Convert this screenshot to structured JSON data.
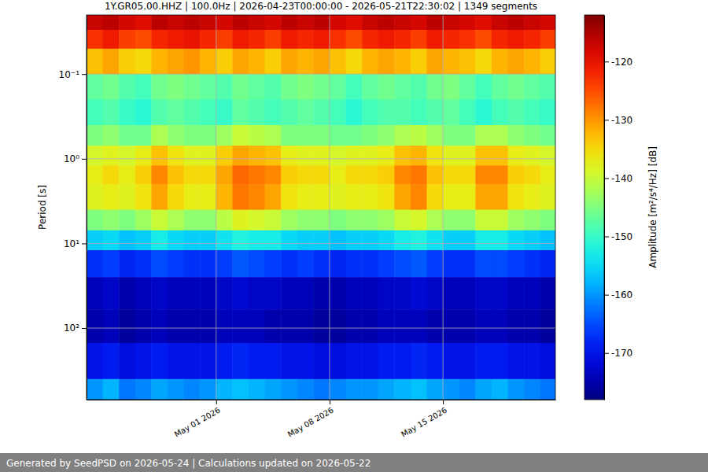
{
  "chart_data": {
    "type": "heatmap",
    "title": "1Y.GR05.00.HHZ | 100.0Hz | 2026-04-23T00:00:00 - 2026-05-21T22:30:02 | 1349 segments",
    "y_label": "Period [s]",
    "footer": "Generated by SeedPSD on 2026-05-24 | Calculations updated on 2026-05-22",
    "log": "y",
    "grid": true,
    "color": "jet",
    "x": [
      "2026-04-23T00:00",
      "2026-04-24T00:00",
      "2026-04-25T00:00",
      "2026-04-26T00:00",
      "2026-04-27T00:00",
      "2026-04-28T00:00",
      "2026-04-29T00:00",
      "2026-04-30T00:00",
      "2026-05-01T00:00",
      "2026-05-02T00:00",
      "2026-05-03T00:00",
      "2026-05-04T00:00",
      "2026-05-05T00:00",
      "2026-05-06T00:00",
      "2026-05-07T00:00",
      "2026-05-08T00:00",
      "2026-05-09T00:00",
      "2026-05-10T00:00",
      "2026-05-11T00:00",
      "2026-05-12T00:00",
      "2026-05-13T00:00",
      "2026-05-14T00:00",
      "2026-05-15T00:00",
      "2026-05-16T00:00",
      "2026-05-17T00:00",
      "2026-05-18T00:00",
      "2026-05-19T00:00",
      "2026-05-20T00:00",
      "2026-05-21T00:00"
    ],
    "xlim": [
      "2026-04-23T00:00",
      "2026-05-21T22:30"
    ],
    "xticks": [
      {
        "value": "2026-05-01T00:00",
        "label": "May 01 2026"
      },
      {
        "value": "2026-05-08T00:00",
        "label": "May 08 2026"
      },
      {
        "value": "2026-05-15T00:00",
        "label": "May 15 2026"
      }
    ],
    "y_bins": [
      0.02,
      0.03,
      0.05,
      0.1,
      0.2,
      0.4,
      0.7,
      1.2,
      2,
      4,
      7,
      12,
      25,
      60,
      150,
      400,
      700
    ],
    "ylim": [
      0.02,
      700
    ],
    "yticks": [
      {
        "value": 0.1,
        "label": "10⁻¹"
      },
      {
        "value": 1,
        "label": "10⁰"
      },
      {
        "value": 10,
        "label": "10¹"
      },
      {
        "value": 100,
        "label": "10²"
      }
    ],
    "z": [
      [
        -117,
        -116,
        -118,
        -119,
        -116,
        -117,
        -116,
        -117,
        -118,
        -116,
        -117,
        -118,
        -116,
        -117,
        -116,
        -118,
        -119,
        -117,
        -116,
        -117,
        -118,
        -116,
        -117,
        -118,
        -119,
        -117,
        -116,
        -117,
        -118
      ],
      [
        -123,
        -121,
        -124,
        -125,
        -122,
        -121,
        -120,
        -122,
        -124,
        -121,
        -122,
        -124,
        -121,
        -122,
        -121,
        -123,
        -125,
        -122,
        -121,
        -122,
        -124,
        -121,
        -122,
        -123,
        -125,
        -122,
        -121,
        -122,
        -124
      ],
      [
        -133,
        -131,
        -134,
        -135,
        -132,
        -131,
        -130,
        -132,
        -134,
        -131,
        -132,
        -134,
        -131,
        -132,
        -131,
        -133,
        -135,
        -132,
        -131,
        -132,
        -134,
        -131,
        -132,
        -133,
        -135,
        -132,
        -131,
        -132,
        -134
      ],
      [
        -147,
        -146,
        -148,
        -149,
        -146,
        -145,
        -146,
        -147,
        -148,
        -146,
        -147,
        -148,
        -146,
        -145,
        -146,
        -147,
        -149,
        -147,
        -146,
        -147,
        -148,
        -146,
        -145,
        -147,
        -149,
        -147,
        -146,
        -147,
        -148
      ],
      [
        -149,
        -148,
        -150,
        -151,
        -148,
        -147,
        -148,
        -149,
        -150,
        -147,
        -148,
        -149,
        -148,
        -147,
        -148,
        -149,
        -151,
        -149,
        -148,
        -148,
        -149,
        -148,
        -147,
        -149,
        -151,
        -149,
        -148,
        -149,
        -150
      ],
      [
        -145,
        -144,
        -146,
        -146,
        -142,
        -144,
        -145,
        -145,
        -143,
        -140,
        -141,
        -142,
        -145,
        -145,
        -145,
        -146,
        -146,
        -145,
        -144,
        -142,
        -141,
        -143,
        -145,
        -145,
        -142,
        -142,
        -144,
        -145,
        -146
      ],
      [
        -139,
        -138,
        -139,
        -137,
        -133,
        -136,
        -138,
        -138,
        -134,
        -131,
        -132,
        -133,
        -137,
        -138,
        -138,
        -139,
        -138,
        -138,
        -137,
        -133,
        -132,
        -136,
        -138,
        -138,
        -133,
        -133,
        -137,
        -138,
        -139
      ],
      [
        -137,
        -135,
        -137,
        -134,
        -129,
        -133,
        -135,
        -135,
        -131,
        -127,
        -128,
        -129,
        -134,
        -135,
        -135,
        -137,
        -135,
        -135,
        -134,
        -129,
        -128,
        -133,
        -135,
        -135,
        -129,
        -129,
        -134,
        -135,
        -137
      ],
      [
        -138,
        -137,
        -138,
        -136,
        -131,
        -135,
        -137,
        -137,
        -132,
        -128,
        -129,
        -131,
        -136,
        -137,
        -137,
        -138,
        -137,
        -137,
        -136,
        -131,
        -129,
        -135,
        -137,
        -137,
        -131,
        -131,
        -136,
        -137,
        -138
      ],
      [
        -145,
        -144,
        -145,
        -143,
        -140,
        -142,
        -144,
        -144,
        -141,
        -138,
        -139,
        -140,
        -143,
        -144,
        -144,
        -145,
        -144,
        -144,
        -143,
        -140,
        -139,
        -142,
        -144,
        -144,
        -140,
        -140,
        -143,
        -144,
        -145
      ],
      [
        -156,
        -155,
        -157,
        -156,
        -153,
        -155,
        -156,
        -156,
        -154,
        -152,
        -153,
        -153,
        -155,
        -156,
        -156,
        -157,
        -156,
        -156,
        -155,
        -153,
        -152,
        -154,
        -156,
        -156,
        -153,
        -153,
        -155,
        -156,
        -157
      ],
      [
        -167,
        -166,
        -168,
        -167,
        -165,
        -166,
        -167,
        -167,
        -166,
        -164,
        -165,
        -166,
        -167,
        -166,
        -167,
        -168,
        -167,
        -167,
        -166,
        -165,
        -164,
        -166,
        -167,
        -167,
        -165,
        -165,
        -166,
        -167,
        -168
      ],
      [
        -174,
        -173,
        -175,
        -174,
        -173,
        -174,
        -174,
        -174,
        -173,
        -172,
        -173,
        -173,
        -174,
        -174,
        -175,
        -175,
        -174,
        -174,
        -173,
        -173,
        -172,
        -173,
        -174,
        -174,
        -173,
        -173,
        -174,
        -174,
        -175
      ],
      [
        -175,
        -174,
        -176,
        -175,
        -174,
        -175,
        -175,
        -175,
        -174,
        -174,
        -174,
        -175,
        -175,
        -175,
        -176,
        -176,
        -175,
        -175,
        -174,
        -174,
        -174,
        -175,
        -175,
        -175,
        -174,
        -174,
        -175,
        -175,
        -176
      ],
      [
        -170,
        -169,
        -171,
        -170,
        -169,
        -170,
        -170,
        -170,
        -169,
        -168,
        -169,
        -169,
        -170,
        -170,
        -171,
        -171,
        -170,
        -170,
        -169,
        -169,
        -168,
        -169,
        -170,
        -170,
        -169,
        -169,
        -170,
        -170,
        -171
      ],
      [
        -160,
        -158,
        -162,
        -161,
        -159,
        -160,
        -161,
        -160,
        -158,
        -157,
        -158,
        -159,
        -160,
        -161,
        -162,
        -161,
        -160,
        -160,
        -159,
        -158,
        -157,
        -159,
        -160,
        -161,
        -159,
        -158,
        -160,
        -161,
        -162
      ]
    ],
    "colorbar": {
      "label": "Amplitude [m²/s⁴/Hz] [dB]",
      "range": [
        -178,
        -112
      ],
      "ticks": [
        -120,
        -130,
        -140,
        -150,
        -160,
        -170
      ]
    }
  }
}
